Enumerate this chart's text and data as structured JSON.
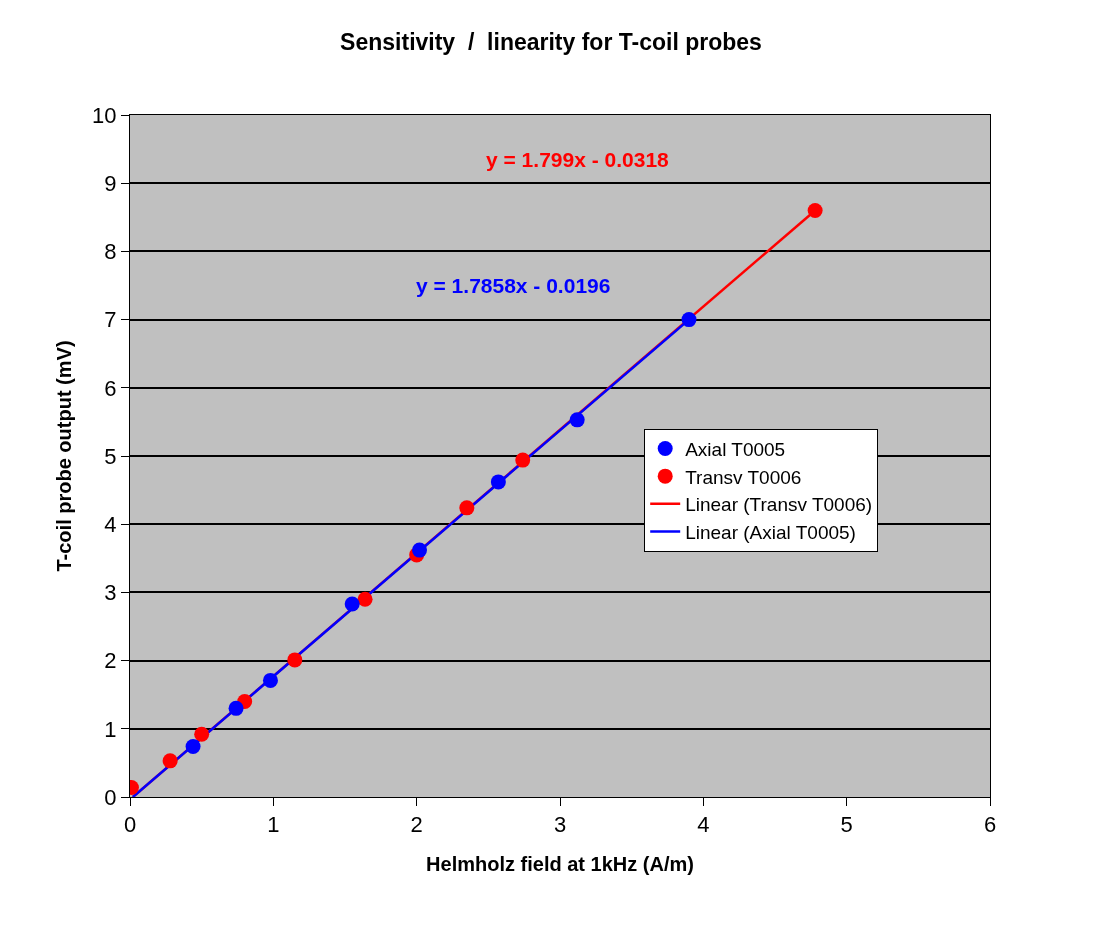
{
  "chart_data": {
    "type": "scatter",
    "title": "Sensitivity  /  linearity for T-coil probes",
    "xlabel": "Helmholz field at 1kHz (A/m)",
    "ylabel": "T-coil probe output (mV)",
    "series": [
      {
        "name": "Axial T0005",
        "color": "#0000ff",
        "marker": "circle",
        "x": [
          0.44,
          0.74,
          0.98,
          1.55,
          2.02,
          2.57,
          3.12,
          3.9
        ],
        "values": [
          0.74,
          1.3,
          1.71,
          2.83,
          3.62,
          4.62,
          5.53,
          7.0
        ]
      },
      {
        "name": "Transv T0006",
        "color": "#ff0000",
        "marker": "circle",
        "x": [
          0.01,
          0.28,
          0.5,
          0.8,
          1.15,
          1.64,
          2.0,
          2.35,
          2.74,
          4.78
        ],
        "values": [
          0.14,
          0.53,
          0.92,
          1.4,
          2.01,
          2.9,
          3.55,
          4.24,
          4.94,
          8.6
        ]
      },
      {
        "name": "Linear (Transv T0006)",
        "type": "line",
        "color": "#ff0000",
        "marker": "none",
        "x": [
          0.02,
          4.78
        ],
        "values": [
          0.0,
          8.6
        ]
      },
      {
        "name": "Linear (Axial T0005)",
        "type": "line",
        "color": "#0000ff",
        "marker": "none",
        "x": [
          0.02,
          3.9
        ],
        "values": [
          0.0,
          7.0
        ]
      }
    ],
    "annotations": [
      "y = 1.799x - 0.0318",
      "y = 1.7858x - 0.0196"
    ],
    "xlim": [
      0,
      6
    ],
    "xticks": [
      0,
      1,
      2,
      3,
      4,
      5,
      6
    ],
    "ylim": [
      0,
      10
    ],
    "yticks": [
      0,
      1,
      2,
      3,
      4,
      5,
      6,
      7,
      8,
      9,
      10
    ],
    "grid": "y",
    "legend": "right"
  }
}
